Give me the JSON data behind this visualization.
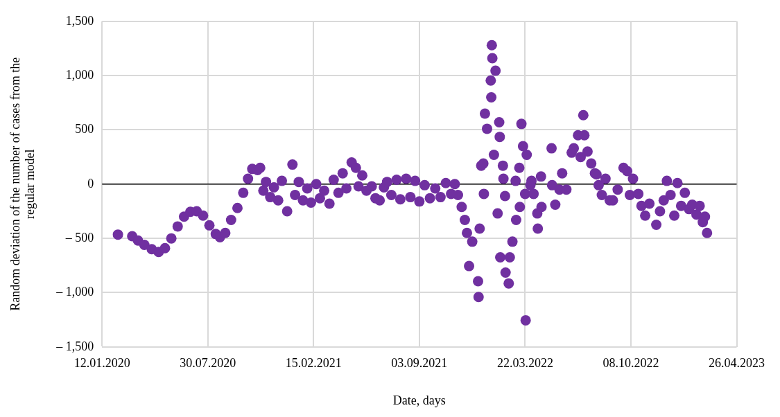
{
  "chart_data": {
    "type": "scatter",
    "xlabel": "Date, days",
    "ylabel": "Random deviation of the number of cases from the regular model",
    "xlim": [
      "2020-01-12",
      "2023-04-26"
    ],
    "xticks": [
      {
        "value": "2020-01-12",
        "label": "12.01.2020"
      },
      {
        "value": "2020-07-30",
        "label": "30.07.2020"
      },
      {
        "value": "2021-02-15",
        "label": "15.02.2021"
      },
      {
        "value": "2021-09-03",
        "label": "03.09.2021"
      },
      {
        "value": "2022-03-22",
        "label": "22.03.2022"
      },
      {
        "value": "2022-10-08",
        "label": "08.10.2022"
      },
      {
        "value": "2023-04-26",
        "label": "26.04.2023"
      }
    ],
    "ylim": [
      -1500,
      1500
    ],
    "yticks": [
      {
        "value": -1500,
        "label": "– 1,500"
      },
      {
        "value": -1000,
        "label": "– 1,000"
      },
      {
        "value": -500,
        "label": "– 500"
      },
      0,
      500,
      {
        "value": 1000,
        "label": "1,000"
      },
      {
        "value": 1500,
        "label": "1,500"
      }
    ],
    "grid": true,
    "marker": "circle",
    "legend": false,
    "ref_lines": [
      {
        "axis": "y",
        "value": 0,
        "color": "#000000"
      }
    ],
    "series": [
      {
        "color": "#7030a0",
        "x": [
          "2020-02-11",
          "2020-03-09",
          "2020-03-20",
          "2020-04-01",
          "2020-04-15",
          "2020-04-28",
          "2020-05-10",
          "2020-05-22",
          "2020-06-03",
          "2020-06-15",
          "2020-06-27",
          "2020-07-09",
          "2020-07-21",
          "2020-08-02",
          "2020-08-14",
          "2020-08-22",
          "2020-09-01",
          "2020-09-12",
          "2020-09-24",
          "2020-10-05",
          "2020-10-14",
          "2020-10-22",
          "2020-11-01",
          "2020-11-06",
          "2020-11-12",
          "2020-11-17",
          "2020-11-25",
          "2020-12-02",
          "2020-12-10",
          "2020-12-17",
          "2020-12-27",
          "2021-01-06",
          "2021-01-11",
          "2021-01-18",
          "2021-01-26",
          "2021-02-03",
          "2021-02-10",
          "2021-02-20",
          "2021-02-27",
          "2021-03-07",
          "2021-03-17",
          "2021-03-25",
          "2021-04-03",
          "2021-04-11",
          "2021-04-18",
          "2021-04-28",
          "2021-05-06",
          "2021-05-11",
          "2021-05-18",
          "2021-05-26",
          "2021-06-05",
          "2021-06-12",
          "2021-06-20",
          "2021-06-28",
          "2021-07-04",
          "2021-07-12",
          "2021-07-22",
          "2021-07-29",
          "2021-08-09",
          "2021-08-17",
          "2021-08-26",
          "2021-09-03",
          "2021-09-13",
          "2021-09-23",
          "2021-10-03",
          "2021-10-13",
          "2021-10-23",
          "2021-11-02",
          "2021-11-09",
          "2021-11-15",
          "2021-11-22",
          "2021-11-28",
          "2021-12-02",
          "2021-12-06",
          "2021-12-12",
          "2021-12-23",
          "2021-12-24",
          "2021-12-26",
          "2021-12-29",
          "2022-01-02",
          "2022-01-03",
          "2022-01-05",
          "2022-01-09",
          "2022-01-16",
          "2022-01-17",
          "2022-01-18",
          "2022-01-19",
          "2022-01-22",
          "2022-01-25",
          "2022-01-29",
          "2022-02-01",
          "2022-02-02",
          "2022-02-03",
          "2022-02-08",
          "2022-02-09",
          "2022-02-12",
          "2022-02-13",
          "2022-02-19",
          "2022-02-21",
          "2022-02-26",
          "2022-03-04",
          "2022-03-05",
          "2022-03-11",
          "2022-03-12",
          "2022-03-15",
          "2022-03-18",
          "2022-03-22",
          "2022-03-23",
          "2022-03-25",
          "2022-04-01",
          "2022-04-03",
          "2022-04-07",
          "2022-04-14",
          "2022-04-15",
          "2022-04-21",
          "2022-04-22",
          "2022-05-11",
          "2022-05-12",
          "2022-05-18",
          "2022-05-26",
          "2022-05-31",
          "2022-06-08",
          "2022-06-18",
          "2022-06-22",
          "2022-06-30",
          "2022-07-05",
          "2022-07-10",
          "2022-07-12",
          "2022-07-18",
          "2022-07-25",
          "2022-08-01",
          "2022-08-04",
          "2022-08-08",
          "2022-08-14",
          "2022-08-21",
          "2022-08-29",
          "2022-09-04",
          "2022-09-13",
          "2022-09-24",
          "2022-10-01",
          "2022-10-06",
          "2022-10-12",
          "2022-10-22",
          "2022-10-28",
          "2022-11-04",
          "2022-11-12",
          "2022-11-25",
          "2022-12-02",
          "2022-12-09",
          "2022-12-15",
          "2022-12-22",
          "2022-12-29",
          "2023-01-04",
          "2023-01-11",
          "2023-01-18",
          "2023-01-26",
          "2023-02-01",
          "2023-02-09",
          "2023-02-15",
          "2023-02-21",
          "2023-02-25",
          "2023-03-01"
        ],
        "values": [
          -465,
          -480,
          -520,
          -560,
          -600,
          -625,
          -590,
          -500,
          -390,
          -300,
          -255,
          -250,
          -290,
          -380,
          -460,
          -490,
          -450,
          -330,
          -220,
          -80,
          50,
          140,
          130,
          150,
          -60,
          20,
          -120,
          -30,
          -150,
          30,
          -250,
          180,
          -100,
          20,
          -150,
          -40,
          -170,
          0,
          -130,
          -60,
          -180,
          40,
          -80,
          100,
          -40,
          200,
          150,
          -20,
          80,
          -60,
          -20,
          -130,
          -150,
          -30,
          20,
          -100,
          40,
          -140,
          50,
          -120,
          30,
          -160,
          -10,
          -130,
          -40,
          -120,
          10,
          -90,
          0,
          -100,
          -210,
          -330,
          -450,
          -755,
          -530,
          -895,
          -1040,
          -410,
          170,
          190,
          -90,
          650,
          510,
          955,
          800,
          1280,
          1160,
          270,
          1045,
          -270,
          570,
          435,
          -675,
          170,
          50,
          -110,
          -815,
          -915,
          -675,
          -530,
          30,
          -330,
          150,
          -210,
          555,
          350,
          -90,
          -1255,
          270,
          -10,
          30,
          -90,
          -270,
          -410,
          70,
          -210,
          330,
          -10,
          -190,
          -50,
          100,
          -50,
          290,
          330,
          450,
          250,
          635,
          450,
          300,
          190,
          100,
          90,
          -10,
          -100,
          50,
          -150,
          -150,
          -50,
          150,
          120,
          -100,
          50,
          -90,
          -200,
          -290,
          -180,
          -375,
          -250,
          -150,
          30,
          -100,
          -290,
          10,
          -200,
          -80,
          -230,
          -190,
          -280,
          -200,
          -350,
          -300,
          -450
        ]
      }
    ]
  }
}
